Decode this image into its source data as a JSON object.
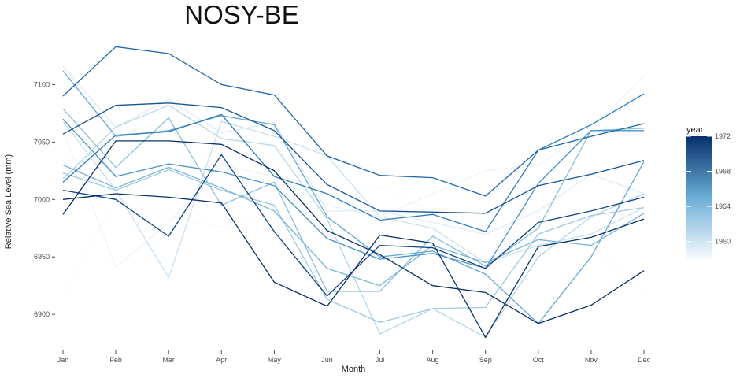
{
  "chart_data": {
    "type": "line",
    "title": "NOSY-BE",
    "xlabel": "Month",
    "ylabel": "Relative Sea Level (mm)",
    "categories": [
      "Jan",
      "Feb",
      "Mar",
      "Apr",
      "May",
      "Jun",
      "Jul",
      "Aug",
      "Sep",
      "Oct",
      "Nov",
      "Dec"
    ],
    "ylim": [
      6872,
      7138
    ],
    "yticks": [
      6900,
      6950,
      7000,
      7050,
      7100
    ],
    "grid": false,
    "legend": {
      "title": "year",
      "position": "right",
      "ticks": [
        1960,
        1964,
        1968,
        1972
      ],
      "range": [
        1958,
        1972
      ],
      "color_low": "#f7fbff",
      "color_high": "#08306b"
    },
    "series": [
      {
        "year": 1958,
        "values": [
          6918,
          7000,
          6985,
          6976,
          6990,
          7000,
          7010,
          6990,
          6980,
          6990,
          6960,
          6918
        ]
      },
      {
        "year": 1959,
        "values": [
          7060,
          6941,
          6980,
          7030,
          7020,
          6995,
          6985,
          7005,
          7025,
          7030,
          7060,
          7108
        ]
      },
      {
        "year": 1960,
        "values": [
          7116,
          7063,
          7087,
          7058,
          7067,
          6990,
          6990,
          6980,
          6970,
          6990,
          7022,
          7005
        ]
      },
      {
        "year": 1961,
        "values": [
          7068,
          7008,
          6932,
          7068,
          7055,
          7038,
          6985,
          6975,
          6945,
          6960,
          6970,
          6993
        ]
      },
      {
        "year": 1962,
        "values": [
          7018,
          7063,
          7082,
          7053,
          7047,
          6983,
          6883,
          6905,
          6880,
          6950,
          6985,
          7005
        ]
      },
      {
        "year": 1963,
        "values": [
          7023,
          7008,
          7026,
          7008,
          6995,
          6913,
          6893,
          6905,
          6906,
          6970,
          6986,
          6993
        ]
      },
      {
        "year": 1964,
        "values": [
          7079,
          7028,
          7071,
          6995,
          7015,
          6920,
          6920,
          6968,
          6942,
          6975,
          7060,
          7062
        ]
      },
      {
        "year": 1965,
        "values": [
          7030,
          7010,
          7028,
          7010,
          6990,
          6940,
          6925,
          6960,
          6945,
          6965,
          6960,
          6988
        ]
      },
      {
        "year": 1966,
        "values": [
          7112,
          7055,
          7060,
          7073,
          7065,
          6985,
          6950,
          6955,
          6935,
          6892,
          6950,
          7033
        ]
      },
      {
        "year": 1967,
        "values": [
          7070,
          7020,
          7031,
          7024,
          7012,
          6966,
          6948,
          6953,
          6940,
          7014,
          7060,
          7060
        ]
      },
      {
        "year": 1968,
        "values": [
          7015,
          7056,
          7059,
          7074,
          7020,
          7005,
          6982,
          6987,
          6972,
          7043,
          7065,
          7092
        ]
      },
      {
        "year": 1969,
        "values": [
          7090,
          7133,
          7127,
          7100,
          7091,
          7038,
          7021,
          7019,
          7003,
          7043,
          7055,
          7066
        ]
      },
      {
        "year": 1970,
        "values": [
          7057,
          7082,
          7084,
          7080,
          7060,
          7013,
          6990,
          6989,
          6988,
          7012,
          7022,
          7034
        ]
      },
      {
        "year": 1971,
        "values": [
          7008,
          7000,
          6968,
          7039,
          6972,
          6916,
          6960,
          6958,
          6940,
          6980,
          6990,
          7002
        ]
      },
      {
        "year": 1972,
        "values": [
          6987,
          7051,
          7051,
          7048,
          7025,
          6973,
          6952,
          6925,
          6919,
          6892,
          6908,
          6938
        ]
      },
      {
        "year": 1972,
        "values": [
          7000,
          7005,
          7002,
          6997,
          6928,
          6907,
          6969,
          6962,
          6880,
          6959,
          6967,
          6983
        ]
      }
    ]
  }
}
